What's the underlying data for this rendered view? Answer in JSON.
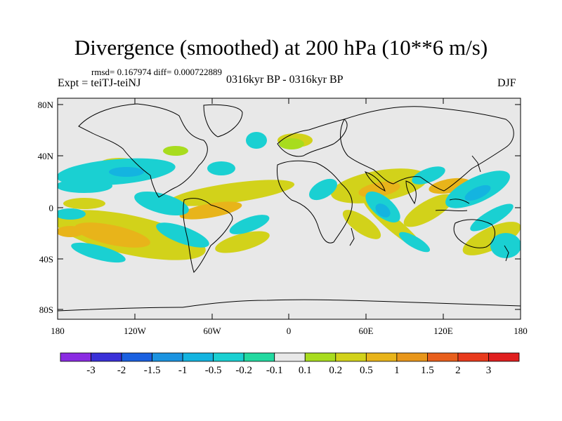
{
  "header": {
    "title": "Divergence (smoothed) at 200 hPa (10**6 m/s)",
    "stats": "rmsd= 0.167974 diff= 0.000722889",
    "experiment": "Expt = teiTJ-teiNJ",
    "period": "0316kyr BP - 0316kyr BP",
    "season": "DJF"
  },
  "axes": {
    "lat_labels": [
      "80N",
      "40N",
      "0",
      "40S",
      "80S"
    ],
    "lon_labels": [
      "180",
      "120W",
      "60W",
      "0",
      "60E",
      "120E",
      "180"
    ]
  },
  "colorbar": {
    "labels": [
      "-3",
      "-2",
      "-1.5",
      "-1",
      "-0.5",
      "-0.2",
      "-0.1",
      "0.1",
      "0.2",
      "0.5",
      "1",
      "1.5",
      "2",
      "3"
    ],
    "colors": [
      "#8a2be2",
      "#3a30d8",
      "#1a60e0",
      "#1b93e0",
      "#14b4e0",
      "#1ad0d2",
      "#22d9a0",
      "#e8e8e8",
      "#a8dc1e",
      "#d2d21a",
      "#e8b41a",
      "#e8961a",
      "#e85f1c",
      "#e83a1c",
      "#e01e1e"
    ]
  },
  "colors": {
    "ocean_background": "#e8e8e8",
    "coastline": "#000000"
  }
}
